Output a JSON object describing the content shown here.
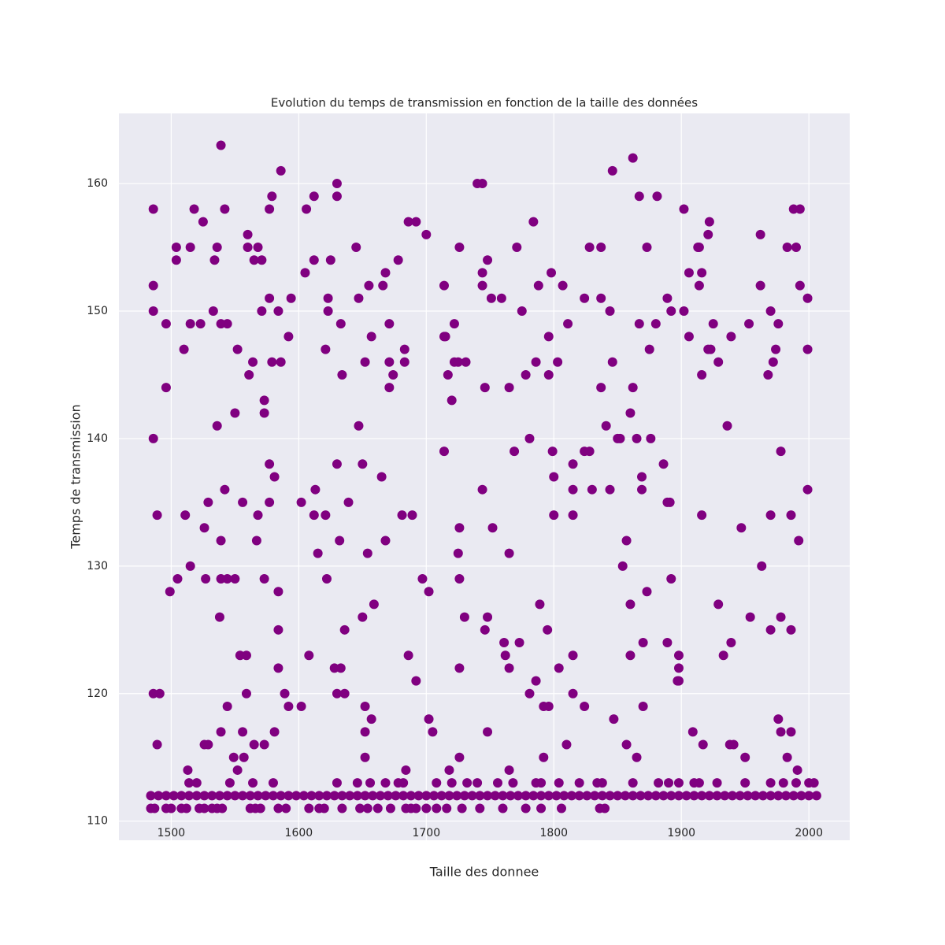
{
  "chart_data": {
    "type": "scatter",
    "title": "Evolution du temps de transmission en fonction de la taille des données",
    "x_label": "Taille des donnee",
    "y_label": "Temps de transmission",
    "color": "#800080",
    "grid": true,
    "xlim": [
      1459,
      2032
    ],
    "ylim": [
      108.5,
      165.5
    ],
    "xticks": [
      1500,
      1600,
      1700,
      1800,
      1900,
      2000
    ],
    "yticks": [
      110,
      120,
      130,
      140,
      150,
      160
    ],
    "x": [
      1486,
      1486,
      1486,
      1486,
      1486,
      1489,
      1489,
      1491,
      1496,
      1496,
      1499,
      1504,
      1504,
      1505,
      1510,
      1511,
      1513,
      1515,
      1515,
      1515,
      1518,
      1523,
      1525,
      1526,
      1526,
      1527,
      1529,
      1529,
      1533,
      1534,
      1536,
      1536,
      1538,
      1539,
      1539,
      1539,
      1539,
      1539,
      1542,
      1542,
      1544,
      1544,
      1544,
      1549,
      1550,
      1550,
      1552,
      1552,
      1554,
      1556,
      1556,
      1557,
      1559,
      1559,
      1560,
      1560,
      1561,
      1564,
      1565,
      1565,
      1567,
      1568,
      1568,
      1571,
      1571,
      1573,
      1573,
      1573,
      1573,
      1577,
      1577,
      1577,
      1577,
      1579,
      1579,
      1581,
      1581,
      1584,
      1584,
      1584,
      1584,
      1586,
      1586,
      1589,
      1592,
      1592,
      1594,
      1602,
      1602,
      1605,
      1606,
      1608,
      1612,
      1612,
      1612,
      1613,
      1615,
      1621,
      1621,
      1622,
      1623,
      1623,
      1625,
      1628,
      1630,
      1630,
      1630,
      1630,
      1632,
      1633,
      1633,
      1634,
      1636,
      1636,
      1639,
      1645,
      1647,
      1647,
      1650,
      1650,
      1652,
      1652,
      1652,
      1652,
      1654,
      1655,
      1657,
      1657,
      1659,
      1665,
      1666,
      1668,
      1668,
      1671,
      1671,
      1671,
      1674,
      1678,
      1681,
      1683,
      1683,
      1684,
      1686,
      1686,
      1689,
      1692,
      1692,
      1697,
      1700,
      1702,
      1702,
      1705,
      1714,
      1714,
      1714,
      1715,
      1717,
      1718,
      1720,
      1722,
      1722,
      1725,
      1725,
      1726,
      1726,
      1726,
      1726,
      1726,
      1730,
      1731,
      1740,
      1744,
      1744,
      1744,
      1744,
      1746,
      1746,
      1748,
      1748,
      1748,
      1751,
      1752,
      1759,
      1761,
      1762,
      1765,
      1765,
      1765,
      1765,
      1769,
      1771,
      1773,
      1775,
      1778,
      1781,
      1781,
      1784,
      1786,
      1786,
      1788,
      1789,
      1792,
      1792,
      1795,
      1796,
      1796,
      1796,
      1798,
      1799,
      1800,
      1800,
      1803,
      1804,
      1807,
      1810,
      1811,
      1815,
      1815,
      1815,
      1815,
      1815,
      1824,
      1824,
      1824,
      1828,
      1828,
      1830,
      1837,
      1837,
      1837,
      1841,
      1844,
      1844,
      1846,
      1846,
      1847,
      1850,
      1852,
      1854,
      1857,
      1857,
      1860,
      1860,
      1860,
      1862,
      1862,
      1865,
      1865,
      1867,
      1867,
      1869,
      1869,
      1870,
      1870,
      1873,
      1873,
      1875,
      1876,
      1880,
      1881,
      1886,
      1889,
      1889,
      1889,
      1891,
      1892,
      1892,
      1897,
      1898,
      1898,
      1898,
      1902,
      1902,
      1906,
      1906,
      1909,
      1913,
      1914,
      1914,
      1916,
      1916,
      1916,
      1917,
      1921,
      1921,
      1922,
      1923,
      1925,
      1929,
      1929,
      1933,
      1936,
      1938,
      1939,
      1939,
      1941,
      1947,
      1950,
      1953,
      1954,
      1962,
      1962,
      1963,
      1968,
      1970,
      1970,
      1970,
      1972,
      1974,
      1976,
      1976,
      1978,
      1978,
      1978,
      1983,
      1983,
      1986,
      1986,
      1986,
      1988,
      1990,
      1991,
      1992,
      1993,
      1993,
      1999,
      1999,
      1999,
      1484,
      1490,
      1496,
      1502,
      1508,
      1514,
      1520,
      1526,
      1532,
      1538,
      1544,
      1550,
      1556,
      1562,
      1568,
      1574,
      1580,
      1586,
      1592,
      1598,
      1604,
      1610,
      1616,
      1622,
      1628,
      1634,
      1640,
      1646,
      1652,
      1658,
      1664,
      1670,
      1676,
      1682,
      1688,
      1694,
      1700,
      1706,
      1712,
      1718,
      1724,
      1730,
      1736,
      1742,
      1748,
      1754,
      1760,
      1766,
      1772,
      1778,
      1784,
      1790,
      1796,
      1802,
      1808,
      1814,
      1820,
      1826,
      1832,
      1838,
      1844,
      1850,
      1856,
      1862,
      1868,
      1874,
      1880,
      1886,
      1892,
      1898,
      1904,
      1910,
      1916,
      1922,
      1928,
      1934,
      1940,
      1946,
      1952,
      1958,
      1964,
      1970,
      1976,
      1982,
      1988,
      1994,
      2000,
      2006,
      1484,
      1487,
      1496,
      1500,
      1508,
      1512,
      1522,
      1526,
      1532,
      1536,
      1540,
      1562,
      1566,
      1570,
      1584,
      1590,
      1608,
      1616,
      1620,
      1634,
      1648,
      1654,
      1662,
      1672,
      1684,
      1688,
      1692,
      1700,
      1708,
      1716,
      1728,
      1742,
      1760,
      1778,
      1790,
      1806,
      1836,
      1840,
      1514,
      1520,
      1546,
      1564,
      1580,
      1630,
      1646,
      1656,
      1668,
      1678,
      1682,
      1708,
      1720,
      1732,
      1740,
      1756,
      1768,
      1786,
      1790,
      1804,
      1820,
      1834,
      1838,
      1862,
      1882,
      1890,
      1898,
      1910,
      1914,
      1928,
      1950,
      1970,
      1980,
      1990,
      2000,
      2004
    ],
    "values": [
      158,
      152,
      150,
      140,
      120,
      134,
      116,
      120,
      149,
      144,
      128,
      154,
      155,
      129,
      147,
      134,
      114,
      155,
      149,
      130,
      158,
      149,
      157,
      133,
      116,
      129,
      135,
      116,
      150,
      154,
      155,
      141,
      126,
      163,
      149,
      132,
      129,
      117,
      136,
      158,
      129,
      119,
      149,
      115,
      142,
      129,
      147,
      114,
      123,
      135,
      117,
      115,
      123,
      120,
      156,
      155,
      145,
      146,
      154,
      116,
      132,
      155,
      134,
      150,
      154,
      143,
      142,
      129,
      116,
      158,
      151,
      138,
      135,
      159,
      146,
      137,
      117,
      150,
      128,
      122,
      125,
      161,
      146,
      120,
      148,
      119,
      151,
      135,
      119,
      153,
      158,
      123,
      159,
      154,
      134,
      136,
      131,
      147,
      134,
      129,
      151,
      150,
      154,
      122,
      160,
      159,
      138,
      120,
      132,
      149,
      122,
      145,
      120,
      125,
      135,
      155,
      141,
      151,
      138,
      126,
      119,
      117,
      115,
      146,
      131,
      152,
      148,
      118,
      127,
      137,
      152,
      153,
      132,
      146,
      144,
      149,
      145,
      154,
      134,
      146,
      147,
      114,
      157,
      123,
      134,
      157,
      121,
      129,
      156,
      128,
      118,
      117,
      152,
      148,
      139,
      148,
      145,
      114,
      143,
      149,
      146,
      146,
      131,
      155,
      133,
      129,
      122,
      115,
      126,
      146,
      160,
      160,
      153,
      152,
      136,
      125,
      144,
      154,
      126,
      117,
      151,
      133,
      151,
      124,
      123,
      122,
      144,
      131,
      114,
      139,
      155,
      124,
      150,
      145,
      140,
      120,
      157,
      146,
      121,
      152,
      127,
      119,
      115,
      125,
      148,
      145,
      119,
      153,
      139,
      137,
      134,
      146,
      122,
      152,
      116,
      149,
      138,
      136,
      134,
      123,
      120,
      151,
      139,
      119,
      155,
      139,
      136,
      151,
      155,
      144,
      141,
      150,
      136,
      161,
      146,
      118,
      140,
      140,
      130,
      132,
      116,
      142,
      127,
      123,
      162,
      144,
      140,
      115,
      159,
      149,
      137,
      136,
      124,
      119,
      155,
      128,
      147,
      140,
      149,
      159,
      138,
      151,
      135,
      124,
      135,
      129,
      150,
      121,
      123,
      122,
      121,
      158,
      150,
      153,
      148,
      117,
      155,
      155,
      152,
      145,
      153,
      134,
      116,
      147,
      156,
      157,
      147,
      149,
      127,
      146,
      123,
      141,
      116,
      148,
      124,
      116,
      133,
      115,
      149,
      126,
      156,
      152,
      130,
      145,
      150,
      134,
      125,
      146,
      147,
      149,
      118,
      139,
      126,
      117,
      115,
      155,
      134,
      125,
      117,
      158,
      155,
      114,
      132,
      158,
      152,
      151,
      136,
      147,
      112,
      112,
      112,
      112,
      112,
      112,
      112,
      112,
      112,
      112,
      112,
      112,
      112,
      112,
      112,
      112,
      112,
      112,
      112,
      112,
      112,
      112,
      112,
      112,
      112,
      112,
      112,
      112,
      112,
      112,
      112,
      112,
      112,
      112,
      112,
      112,
      112,
      112,
      112,
      112,
      112,
      112,
      112,
      112,
      112,
      112,
      112,
      112,
      112,
      112,
      112,
      112,
      112,
      112,
      112,
      112,
      112,
      112,
      112,
      112,
      112,
      112,
      112,
      112,
      112,
      112,
      112,
      112,
      112,
      112,
      112,
      112,
      112,
      112,
      112,
      112,
      112,
      112,
      112,
      112,
      112,
      112,
      112,
      112,
      112,
      112,
      112,
      112,
      111,
      111,
      111,
      111,
      111,
      111,
      111,
      111,
      111,
      111,
      111,
      111,
      111,
      111,
      111,
      111,
      111,
      111,
      111,
      111,
      111,
      111,
      111,
      111,
      111,
      111,
      111,
      111,
      111,
      111,
      111,
      111,
      111,
      111,
      111,
      111,
      111,
      111,
      113,
      113,
      113,
      113,
      113,
      113,
      113,
      113,
      113,
      113,
      113,
      113,
      113,
      113,
      113,
      113,
      113,
      113,
      113,
      113,
      113,
      113,
      113,
      113,
      113,
      113,
      113,
      113,
      113,
      113,
      113,
      113,
      113,
      113,
      113,
      113
    ]
  }
}
